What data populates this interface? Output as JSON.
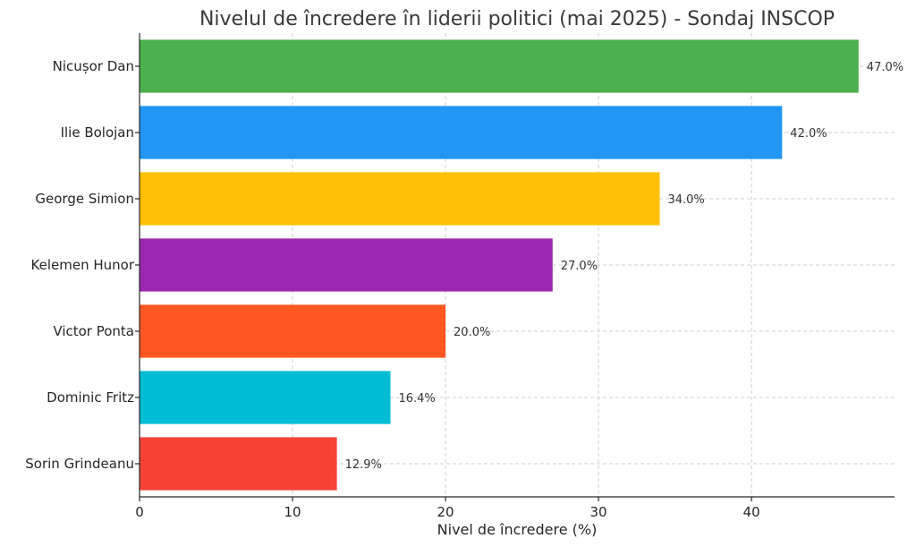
{
  "chart_data": {
    "type": "bar",
    "orientation": "horizontal",
    "title": "Nivelul de încredere în liderii politici (mai 2025) - Sondaj INSCOP",
    "xlabel": "Nivel de încredere (%)",
    "ylabel": "",
    "xlim": [
      0,
      49.35
    ],
    "xticks": [
      0,
      10,
      20,
      30,
      40
    ],
    "grid": true,
    "categories": [
      "Nicușor Dan",
      "Ilie Bolojan",
      "George Simion",
      "Kelemen Hunor",
      "Victor Ponta",
      "Dominic Fritz",
      "Sorin Grindeanu"
    ],
    "values": [
      47.0,
      42.0,
      34.0,
      27.0,
      20.0,
      16.4,
      12.9
    ],
    "value_labels": [
      "47.0%",
      "42.0%",
      "34.0%",
      "27.0%",
      "20.0%",
      "16.4%",
      "12.9%"
    ],
    "colors": [
      "#4caf50",
      "#2196f3",
      "#ffc107",
      "#9c27b0",
      "#ff5722",
      "#00bcd4",
      "#f44336"
    ]
  }
}
